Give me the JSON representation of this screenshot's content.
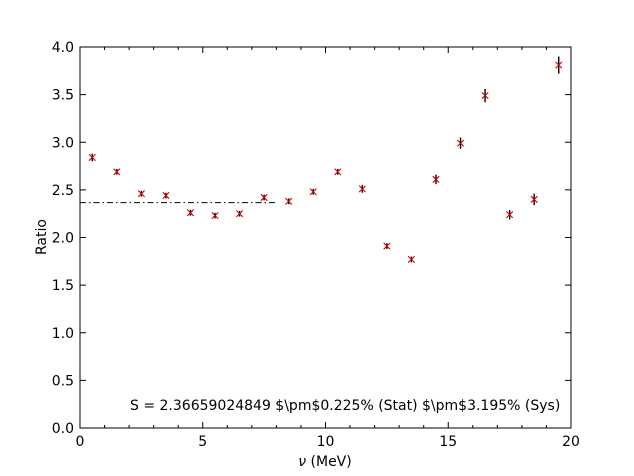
{
  "chart_data": {
    "type": "scatter",
    "title": "",
    "xlabel_symbol": "ν",
    "xlabel_unit": " (MeV)",
    "ylabel": "Ratio",
    "xlim": [
      0,
      20
    ],
    "ylim": [
      0.0,
      4.0
    ],
    "xticks": [
      0,
      5,
      10,
      15,
      20
    ],
    "xtick_labels": [
      "0",
      "5",
      "10",
      "15",
      "20"
    ],
    "yticks": [
      0.0,
      0.5,
      1.0,
      1.5,
      2.0,
      2.5,
      3.0,
      3.5,
      4.0
    ],
    "ytick_labels": [
      "0.0",
      "0.5",
      "1.0",
      "1.5",
      "2.0",
      "2.5",
      "3.0",
      "3.5",
      "4.0"
    ],
    "grid": false,
    "marker": "x",
    "marker_color": "#cc0000",
    "errorbar_color": "#000000",
    "x": [
      0.5,
      1.5,
      2.5,
      3.5,
      4.5,
      5.5,
      6.5,
      7.5,
      8.5,
      9.5,
      10.5,
      11.5,
      12.5,
      13.5,
      14.5,
      15.5,
      16.5,
      17.5,
      18.5,
      19.5
    ],
    "y": [
      2.84,
      2.69,
      2.46,
      2.44,
      2.26,
      2.23,
      2.25,
      2.42,
      2.38,
      2.48,
      2.69,
      2.51,
      1.91,
      1.77,
      2.61,
      2.99,
      3.49,
      2.24,
      2.4,
      3.81
    ],
    "yerr": [
      0.04,
      0.03,
      0.03,
      0.03,
      0.03,
      0.03,
      0.03,
      0.03,
      0.03,
      0.03,
      0.03,
      0.04,
      0.03,
      0.03,
      0.05,
      0.06,
      0.07,
      0.05,
      0.06,
      0.09
    ],
    "reference_line": {
      "y": 2.3666,
      "x_range": [
        0,
        8.0
      ],
      "style": "dash-dot",
      "color": "#000000"
    },
    "annotation": "S = 2.36659024849 $\\pm$0.225% (Stat)  $\\pm$3.195% (Sys)"
  }
}
